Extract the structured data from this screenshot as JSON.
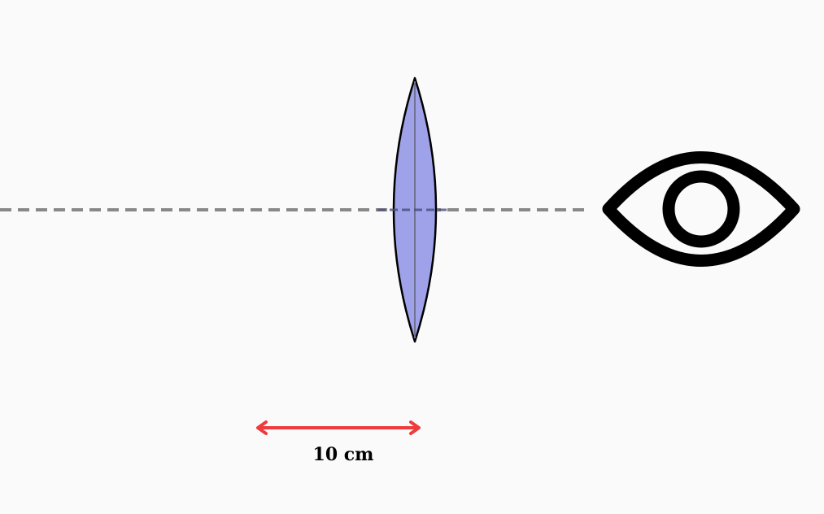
{
  "scale_bar": {
    "label": "10 cm",
    "color": "#ef3b3b"
  },
  "lens": {
    "type": "converging-biconvex",
    "fill_color": "#9fa2e8",
    "stroke_color": "#000000"
  },
  "optical_axis": {
    "style": "dashed",
    "color": "#888888"
  },
  "eye": {
    "icon": "eye-icon",
    "color": "#000000"
  },
  "background_color": "#fafafa"
}
